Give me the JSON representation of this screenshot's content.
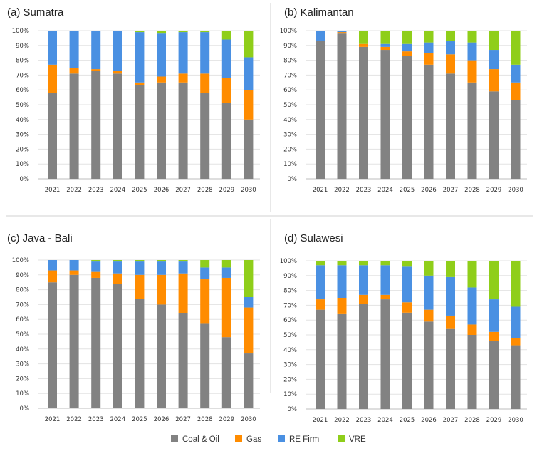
{
  "colors": {
    "coal_oil": "#828282",
    "gas": "#ff8c00",
    "re_firm": "#4a90e2",
    "vre": "#8fce1a"
  },
  "legend": [
    {
      "key": "coal_oil",
      "label": "Coal & Oil"
    },
    {
      "key": "gas",
      "label": "Gas"
    },
    {
      "key": "re_firm",
      "label": "RE Firm"
    },
    {
      "key": "vre",
      "label": "VRE"
    }
  ],
  "chart_data": [
    {
      "type": "bar",
      "stacked": true,
      "title": "(a) Sumatra",
      "categories": [
        "2021",
        "2022",
        "2023",
        "2024",
        "2025",
        "2026",
        "2027",
        "2028",
        "2029",
        "2030"
      ],
      "yticks": [
        "0%",
        "10%",
        "20%",
        "30%",
        "40%",
        "50%",
        "60%",
        "70%",
        "80%",
        "90%",
        "100%"
      ],
      "ylim": [
        0,
        100
      ],
      "series": [
        {
          "name": "Coal & Oil",
          "key": "coal_oil",
          "values": [
            58,
            71,
            73,
            71,
            63,
            65,
            65,
            58,
            51,
            40
          ]
        },
        {
          "name": "Gas",
          "key": "gas",
          "values": [
            19,
            4,
            1,
            2,
            2,
            4,
            6,
            13,
            17,
            20
          ]
        },
        {
          "name": "RE Firm",
          "key": "re_firm",
          "values": [
            23,
            25,
            26,
            27,
            34,
            29,
            28,
            28,
            26,
            22
          ]
        },
        {
          "name": "VRE",
          "key": "vre",
          "values": [
            0,
            0,
            0,
            0,
            1,
            2,
            1,
            1,
            6,
            18
          ]
        }
      ]
    },
    {
      "type": "bar",
      "stacked": true,
      "title": "(b) Kalimantan",
      "categories": [
        "2021",
        "2022",
        "2023",
        "2024",
        "2025",
        "2026",
        "2027",
        "2028",
        "2029",
        "2030"
      ],
      "yticks": [
        "0%",
        "10%",
        "20%",
        "30%",
        "40%",
        "50%",
        "60%",
        "70%",
        "80%",
        "90%",
        "100%"
      ],
      "ylim": [
        0,
        100
      ],
      "series": [
        {
          "name": "Coal & Oil",
          "key": "coal_oil",
          "values": [
            93,
            98,
            89,
            87,
            83,
            77,
            71,
            65,
            59,
            53
          ]
        },
        {
          "name": "Gas",
          "key": "gas",
          "values": [
            0,
            1,
            2,
            2,
            3,
            8,
            13,
            15,
            15,
            12
          ]
        },
        {
          "name": "RE Firm",
          "key": "re_firm",
          "values": [
            7,
            1,
            0,
            2,
            5,
            7,
            9,
            12,
            13,
            12
          ]
        },
        {
          "name": "VRE",
          "key": "vre",
          "values": [
            0,
            0,
            9,
            9,
            9,
            8,
            7,
            8,
            13,
            23
          ]
        }
      ]
    },
    {
      "type": "bar",
      "stacked": true,
      "title": "(c) Java - Bali",
      "categories": [
        "2021",
        "2022",
        "2023",
        "2024",
        "2025",
        "2026",
        "2027",
        "2028",
        "2029",
        "2030"
      ],
      "yticks": [
        "0%",
        "10%",
        "20%",
        "30%",
        "40%",
        "50%",
        "60%",
        "70%",
        "80%",
        "90%",
        "100%"
      ],
      "ylim": [
        0,
        100
      ],
      "series": [
        {
          "name": "Coal & Oil",
          "key": "coal_oil",
          "values": [
            85,
            90,
            88,
            84,
            74,
            70,
            64,
            57,
            48,
            37
          ]
        },
        {
          "name": "Gas",
          "key": "gas",
          "values": [
            8,
            3,
            4,
            7,
            16,
            20,
            27,
            30,
            40,
            31
          ]
        },
        {
          "name": "RE Firm",
          "key": "re_firm",
          "values": [
            7,
            7,
            7,
            8,
            9,
            9,
            8,
            8,
            7,
            7
          ]
        },
        {
          "name": "VRE",
          "key": "vre",
          "values": [
            0,
            0,
            1,
            1,
            1,
            1,
            1,
            5,
            5,
            25
          ]
        }
      ]
    },
    {
      "type": "bar",
      "stacked": true,
      "title": "(d) Sulawesi",
      "categories": [
        "2021",
        "2022",
        "2023",
        "2024",
        "2025",
        "2026",
        "2027",
        "2028",
        "2029",
        "2030"
      ],
      "yticks": [
        "0%",
        "10%",
        "20%",
        "30%",
        "40%",
        "50%",
        "60%",
        "70%",
        "80%",
        "90%",
        "100%"
      ],
      "ylim": [
        0,
        100
      ],
      "series": [
        {
          "name": "Coal & Oil",
          "key": "coal_oil",
          "values": [
            67,
            64,
            71,
            74,
            65,
            59,
            54,
            50,
            46,
            43
          ]
        },
        {
          "name": "Gas",
          "key": "gas",
          "values": [
            7,
            11,
            6,
            3,
            7,
            8,
            9,
            7,
            6,
            5
          ]
        },
        {
          "name": "RE Firm",
          "key": "re_firm",
          "values": [
            23,
            22,
            20,
            20,
            24,
            23,
            26,
            25,
            22,
            21
          ]
        },
        {
          "name": "VRE",
          "key": "vre",
          "values": [
            3,
            3,
            3,
            3,
            4,
            10,
            11,
            18,
            26,
            31
          ]
        }
      ]
    }
  ]
}
